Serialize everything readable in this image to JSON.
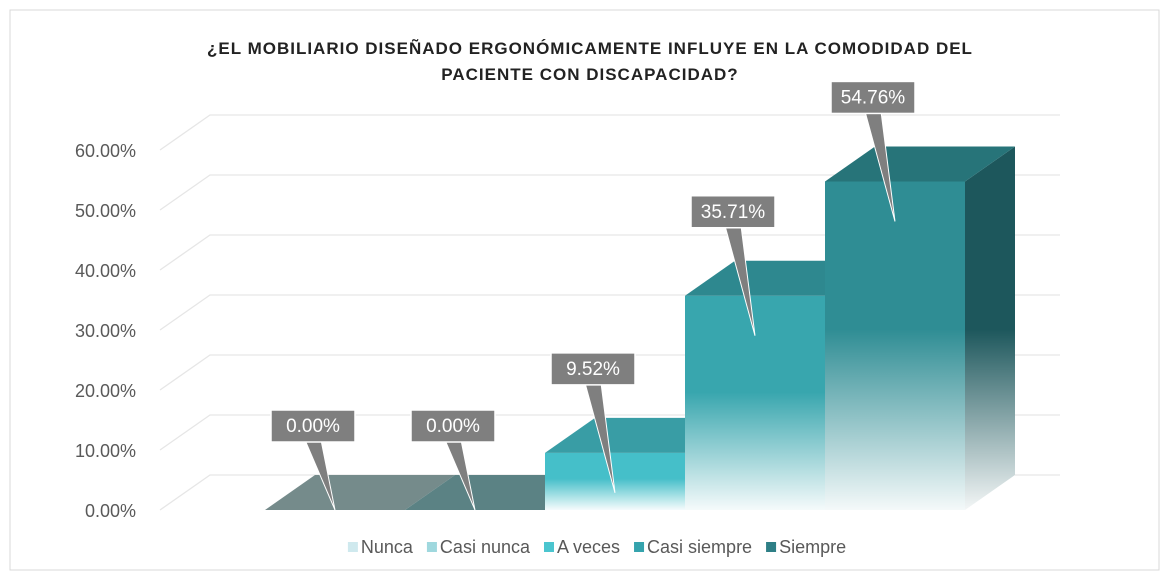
{
  "chart_data": {
    "type": "bar3d",
    "title": "¿EL MOBILIARIO DISEÑADO ERGONÓMICAMENTE INFLUYE EN LA COMODIDAD DEL PACIENTE CON DISCAPACIDAD?",
    "categories": [
      "Nunca",
      "Casi nunca",
      "A veces",
      "Casi siempre",
      "Siempre"
    ],
    "values": [
      0,
      0,
      9.52,
      35.71,
      54.76
    ],
    "value_labels": [
      "0.00%",
      "0.00%",
      "9.52%",
      "35.71%",
      "54.76%"
    ],
    "colors": [
      "#8fa9aa",
      "#6f9fa1",
      "#45bfc9",
      "#38a6ae",
      "#2f8d94"
    ],
    "legend_colors": [
      "#cfe9ee",
      "#9fd8de",
      "#4bc5cf",
      "#35a3ad",
      "#2e7f86"
    ],
    "ylim": [
      0,
      60
    ],
    "yticks": [
      {
        "value": 0,
        "label": "0.00%"
      },
      {
        "value": 10,
        "label": "10.00%"
      },
      {
        "value": 20,
        "label": "20.00%"
      },
      {
        "value": 30,
        "label": "30.00%"
      },
      {
        "value": 40,
        "label": "40.00%"
      },
      {
        "value": 50,
        "label": "50.00%"
      },
      {
        "value": 60,
        "label": "60.00%"
      }
    ],
    "grid": true,
    "legend": "bottom"
  }
}
